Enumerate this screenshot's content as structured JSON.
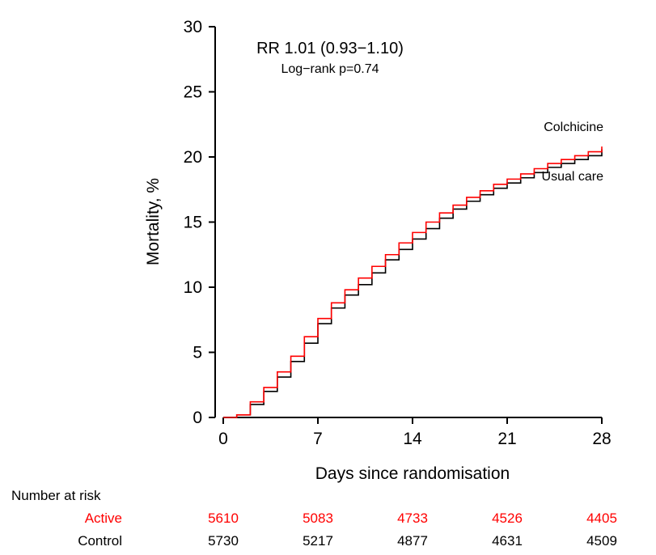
{
  "chart_data": {
    "type": "line",
    "subtype": "step",
    "annotation": {
      "line1": "RR 1.01 (0.93−1.10)",
      "line2": "Log−rank p=0.74"
    },
    "xlabel": "Days since randomisation",
    "ylabel": "Mortality, %",
    "xlim": [
      0,
      28
    ],
    "ylim": [
      0,
      30
    ],
    "xticks": [
      0,
      7,
      14,
      21,
      28
    ],
    "yticks": [
      0,
      5,
      10,
      15,
      20,
      25,
      30
    ],
    "grid": false,
    "legend_position": "inline-right",
    "x": [
      0,
      1,
      2,
      3,
      4,
      5,
      6,
      7,
      8,
      9,
      10,
      11,
      12,
      13,
      14,
      15,
      16,
      17,
      18,
      19,
      20,
      21,
      22,
      23,
      24,
      25,
      26,
      27,
      28
    ],
    "series": [
      {
        "name": "Colchicine",
        "color": "#ff0000",
        "values": [
          0,
          0.2,
          1.2,
          2.3,
          3.5,
          4.7,
          6.2,
          7.6,
          8.8,
          9.8,
          10.7,
          11.6,
          12.5,
          13.4,
          14.2,
          15.0,
          15.7,
          16.3,
          16.9,
          17.4,
          17.9,
          18.3,
          18.7,
          19.1,
          19.5,
          19.8,
          20.1,
          20.4,
          20.8
        ]
      },
      {
        "name": "Usual care",
        "color": "#000000",
        "values": [
          0,
          0.2,
          1.0,
          2.0,
          3.1,
          4.3,
          5.7,
          7.2,
          8.4,
          9.4,
          10.2,
          11.1,
          12.1,
          12.9,
          13.7,
          14.5,
          15.3,
          16.0,
          16.6,
          17.1,
          17.6,
          18.0,
          18.4,
          18.8,
          19.2,
          19.5,
          19.8,
          20.1,
          20.6
        ]
      }
    ],
    "risk_table": {
      "title": "Number at risk",
      "days": [
        0,
        7,
        14,
        21,
        28
      ],
      "rows": [
        {
          "label": "Active",
          "color": "#ff0000",
          "values": [
            5610,
            5083,
            4733,
            4526,
            4405
          ]
        },
        {
          "label": "Control",
          "color": "#000000",
          "values": [
            5730,
            5217,
            4877,
            4631,
            4509
          ]
        }
      ]
    }
  }
}
